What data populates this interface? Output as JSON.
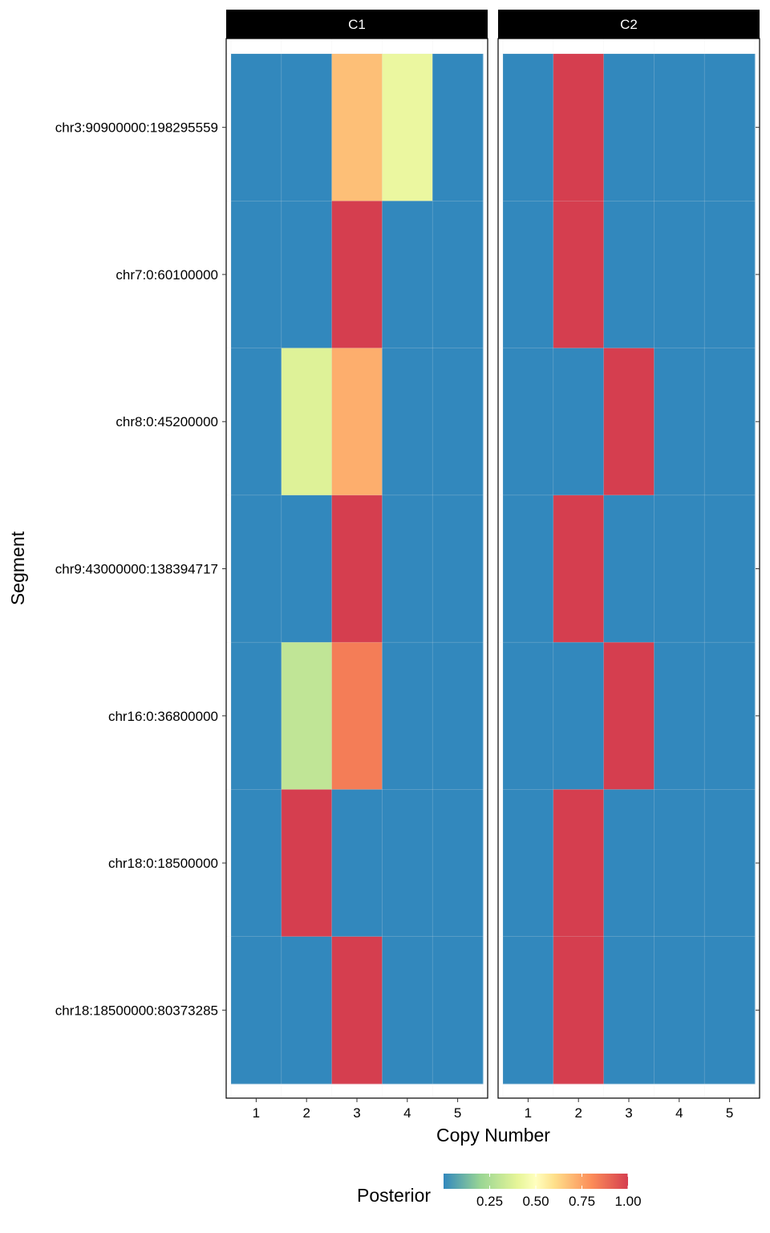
{
  "chart_data": {
    "type": "heatmap",
    "xlabel": "Copy Number",
    "ylabel": "Segment",
    "x_categories": [
      "1",
      "2",
      "3",
      "4",
      "5"
    ],
    "segments": [
      "chr3:90900000:198295559",
      "chr7:0:60100000",
      "chr8:0:45200000",
      "chr9:43000000:138394717",
      "chr16:0:36800000",
      "chr18:0:18500000",
      "chr18:18500000:80373285"
    ],
    "facets": [
      {
        "name": "C1",
        "values": [
          [
            0.0,
            0.0,
            0.68,
            0.42,
            0.0
          ],
          [
            0.0,
            0.0,
            1.0,
            0.0,
            0.0
          ],
          [
            0.0,
            0.38,
            0.72,
            0.0,
            0.0
          ],
          [
            0.0,
            0.0,
            1.0,
            0.0,
            0.0
          ],
          [
            0.0,
            0.3,
            0.84,
            0.0,
            0.0
          ],
          [
            0.0,
            1.0,
            0.0,
            0.0,
            0.0
          ],
          [
            0.0,
            0.0,
            1.0,
            0.0,
            0.0
          ]
        ]
      },
      {
        "name": "C2",
        "values": [
          [
            0.0,
            1.0,
            0.0,
            0.0,
            0.0
          ],
          [
            0.0,
            1.0,
            0.0,
            0.0,
            0.0
          ],
          [
            0.0,
            0.0,
            1.0,
            0.0,
            0.0
          ],
          [
            0.0,
            1.0,
            0.0,
            0.0,
            0.0
          ],
          [
            0.0,
            0.0,
            1.0,
            0.0,
            0.0
          ],
          [
            0.0,
            1.0,
            0.0,
            0.0,
            0.0
          ],
          [
            0.0,
            1.0,
            0.0,
            0.0,
            0.0
          ]
        ]
      }
    ],
    "legend": {
      "title": "Posterior",
      "position": "bottom",
      "range": [
        0.0,
        1.0
      ],
      "ticks": [
        0.25,
        0.5,
        0.75,
        1.0
      ],
      "tick_labels": [
        "0.25",
        "0.50",
        "0.75",
        "1.00"
      ]
    },
    "color_scale": [
      {
        "stop": 0.0,
        "color": "#3288bd"
      },
      {
        "stop": 0.2,
        "color": "#99d594"
      },
      {
        "stop": 0.4,
        "color": "#e6f598"
      },
      {
        "stop": 0.5,
        "color": "#ffffbf"
      },
      {
        "stop": 0.6,
        "color": "#fee08b"
      },
      {
        "stop": 0.8,
        "color": "#fc8d59"
      },
      {
        "stop": 1.0,
        "color": "#d53e4f"
      }
    ],
    "grid": true,
    "theme_colors": {
      "strip_background": "#000000",
      "strip_text": "#ffffff",
      "panel_border": "#000000",
      "grid_line": "#e6e6e6"
    }
  }
}
